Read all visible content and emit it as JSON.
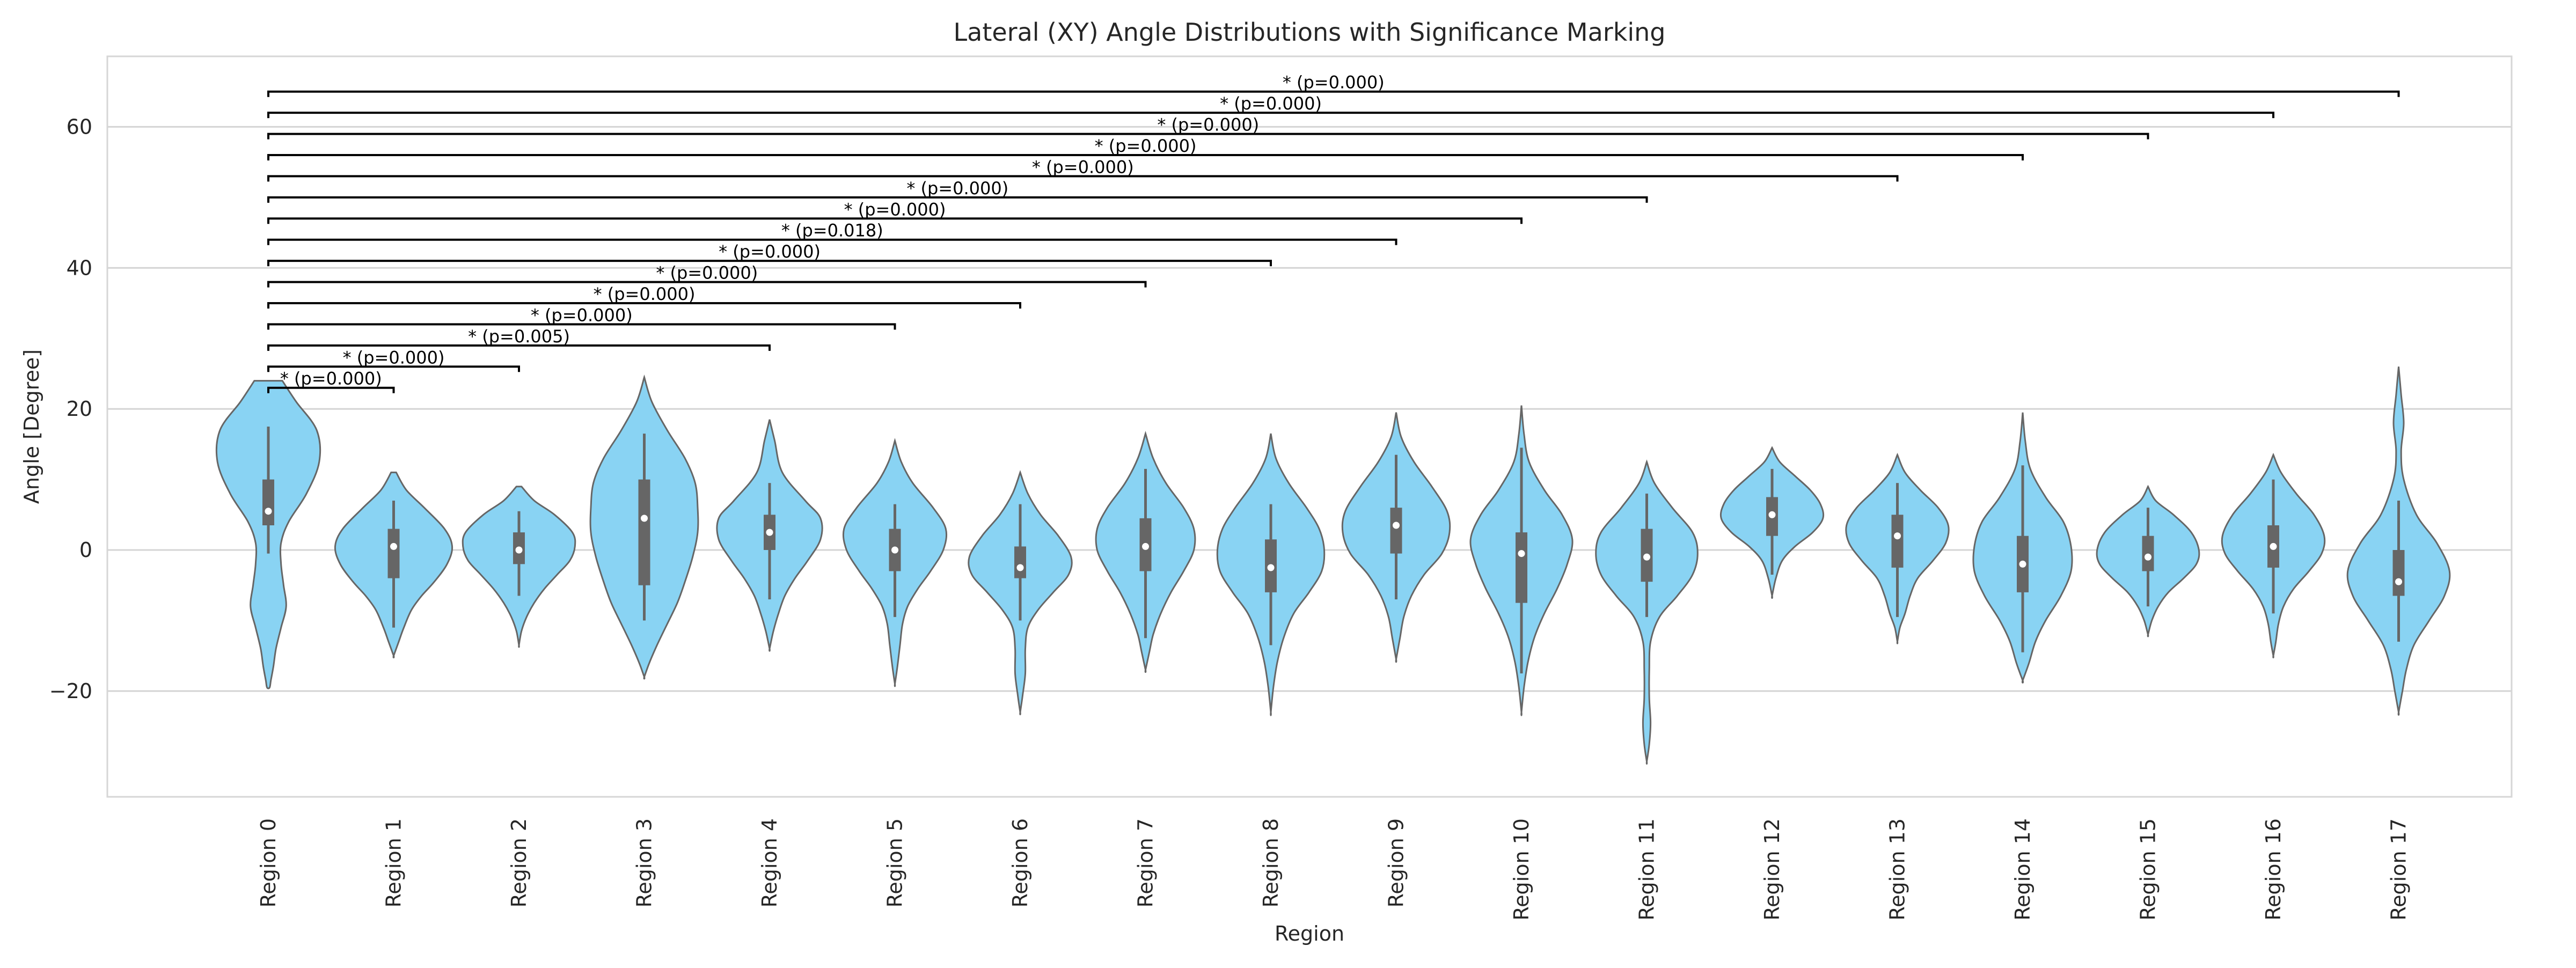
{
  "chart_data": {
    "type": "violin",
    "title": "Lateral (XY) Angle Distributions with Significance Marking",
    "xlabel": "Region",
    "ylabel": "Angle [Degree]",
    "ylim": [
      -35,
      70
    ],
    "yticks": [
      -20,
      0,
      20,
      40,
      60
    ],
    "ytick_labels": [
      "−20",
      "0",
      "20",
      "40",
      "60"
    ],
    "grid": "y",
    "violin_color": "#89d3f3",
    "edge_color": "#666666",
    "categories": [
      "Region 0",
      "Region 1",
      "Region 2",
      "Region 3",
      "Region 4",
      "Region 5",
      "Region 6",
      "Region 7",
      "Region 8",
      "Region 9",
      "Region 10",
      "Region 11",
      "Region 12",
      "Region 13",
      "Region 14",
      "Region 15",
      "Region 16",
      "Region 17"
    ],
    "violins": [
      {
        "min": -19.5,
        "max": 24.0,
        "q1": 3.5,
        "median": 5.5,
        "q3": 10.0,
        "whisker_low": -0.5,
        "whisker_high": 17.5,
        "halfwidth": [
          0.11,
          0.22,
          0.38,
          0.4,
          0.3,
          0.16,
          0.1,
          0.1,
          0.12,
          0.14,
          0.1,
          0.06,
          0.04,
          0.02,
          0.01
        ],
        "ys": [
          24.0,
          21.0,
          17.0,
          12.5,
          8.0,
          4.0,
          1.0,
          -2.0,
          -5.0,
          -8.0,
          -11.0,
          -14.0,
          -16.5,
          -18.5,
          -19.5
        ]
      },
      {
        "min": -15.0,
        "max": 11.0,
        "q1": -4.0,
        "median": 0.5,
        "q3": 3.0,
        "whisker_low": -11.0,
        "whisker_high": 7.0,
        "halfwidth": [
          0.02,
          0.1,
          0.24,
          0.4,
          0.46,
          0.42,
          0.32,
          0.22,
          0.14,
          0.08,
          0.04,
          0.0
        ],
        "ys": [
          11.0,
          8.5,
          6.0,
          3.0,
          0.5,
          -2.0,
          -4.5,
          -6.5,
          -8.5,
          -11.0,
          -13.0,
          -15.0
        ]
      },
      {
        "min": -13.5,
        "max": 9.0,
        "q1": -2.0,
        "median": 0.0,
        "q3": 2.5,
        "whisker_low": -6.5,
        "whisker_high": 5.5,
        "halfwidth": [
          0.02,
          0.12,
          0.28,
          0.42,
          0.44,
          0.4,
          0.3,
          0.2,
          0.12,
          0.06,
          0.02,
          0.0
        ],
        "ys": [
          9.0,
          7.0,
          5.0,
          2.5,
          0.5,
          -1.5,
          -3.5,
          -5.5,
          -7.5,
          -9.5,
          -11.5,
          -13.5
        ]
      },
      {
        "min": -18.0,
        "max": 24.5,
        "q1": -5.0,
        "median": 4.5,
        "q3": 10.0,
        "whisker_low": -10.0,
        "whisker_high": 16.5,
        "halfwidth": [
          0.0,
          0.06,
          0.18,
          0.32,
          0.4,
          0.42,
          0.42,
          0.38,
          0.32,
          0.26,
          0.18,
          0.1,
          0.04,
          0.0
        ],
        "ys": [
          24.5,
          21.0,
          17.0,
          13.0,
          9.5,
          6.0,
          2.5,
          -1.0,
          -4.5,
          -7.5,
          -10.5,
          -13.5,
          -16.0,
          -18.0
        ]
      },
      {
        "min": -14.0,
        "max": 18.5,
        "q1": 0.0,
        "median": 2.5,
        "q3": 5.0,
        "whisker_low": -7.0,
        "whisker_high": 9.5,
        "halfwidth": [
          0.0,
          0.04,
          0.1,
          0.28,
          0.4,
          0.4,
          0.3,
          0.2,
          0.12,
          0.07,
          0.03,
          0.0
        ],
        "ys": [
          18.5,
          15.5,
          11.0,
          7.0,
          4.5,
          1.5,
          -1.5,
          -4.0,
          -6.5,
          -9.0,
          -11.5,
          -14.0
        ]
      },
      {
        "min": -19.0,
        "max": 15.5,
        "q1": -3.0,
        "median": 0.0,
        "q3": 3.0,
        "whisker_low": -9.5,
        "whisker_high": 6.5,
        "halfwidth": [
          0.0,
          0.05,
          0.14,
          0.3,
          0.4,
          0.38,
          0.28,
          0.18,
          0.1,
          0.06,
          0.04,
          0.02,
          0.0
        ],
        "ys": [
          15.5,
          12.5,
          9.5,
          6.0,
          3.0,
          0.0,
          -3.0,
          -5.5,
          -8.0,
          -10.5,
          -13.5,
          -16.5,
          -19.0
        ]
      },
      {
        "min": -23.0,
        "max": 11.0,
        "q1": -4.0,
        "median": -2.5,
        "q3": 0.5,
        "whisker_low": -10.0,
        "whisker_high": 6.5,
        "halfwidth": [
          0.0,
          0.06,
          0.16,
          0.3,
          0.4,
          0.38,
          0.26,
          0.14,
          0.06,
          0.04,
          0.04,
          0.02,
          0.0
        ],
        "ys": [
          11.0,
          8.0,
          5.0,
          2.0,
          -1.0,
          -3.5,
          -6.0,
          -8.5,
          -11.0,
          -14.0,
          -17.5,
          -20.5,
          -23.0
        ]
      },
      {
        "min": -17.0,
        "max": 16.5,
        "q1": -3.0,
        "median": 0.5,
        "q3": 4.5,
        "whisker_low": -12.5,
        "whisker_high": 11.5,
        "halfwidth": [
          0.0,
          0.06,
          0.16,
          0.3,
          0.38,
          0.38,
          0.3,
          0.2,
          0.12,
          0.06,
          0.03,
          0.0
        ],
        "ys": [
          16.5,
          13.0,
          9.5,
          6.0,
          3.0,
          0.0,
          -3.0,
          -6.0,
          -9.0,
          -12.0,
          -14.5,
          -17.0
        ]
      },
      {
        "min": -23.0,
        "max": 16.5,
        "q1": -6.0,
        "median": -2.5,
        "q3": 1.5,
        "whisker_low": -13.5,
        "whisker_high": 6.5,
        "halfwidth": [
          0.0,
          0.04,
          0.14,
          0.28,
          0.38,
          0.42,
          0.4,
          0.3,
          0.18,
          0.1,
          0.05,
          0.02,
          0.0
        ],
        "ys": [
          16.5,
          13.0,
          9.5,
          6.0,
          3.0,
          0.0,
          -3.0,
          -6.0,
          -9.0,
          -12.5,
          -16.0,
          -19.5,
          -23.0
        ]
      },
      {
        "min": -15.5,
        "max": 19.5,
        "q1": -0.5,
        "median": 3.5,
        "q3": 6.0,
        "whisker_low": -7.0,
        "whisker_high": 13.5,
        "halfwidth": [
          0.0,
          0.04,
          0.14,
          0.28,
          0.4,
          0.42,
          0.36,
          0.22,
          0.12,
          0.06,
          0.03,
          0.0
        ],
        "ys": [
          19.5,
          16.0,
          12.5,
          9.0,
          5.5,
          2.5,
          -0.5,
          -3.5,
          -6.5,
          -9.5,
          -12.5,
          -15.5
        ]
      },
      {
        "min": -23.0,
        "max": 20.5,
        "q1": -7.5,
        "median": -0.5,
        "q3": 2.5,
        "whisker_low": -17.5,
        "whisker_high": 14.5,
        "halfwidth": [
          0.0,
          0.02,
          0.06,
          0.18,
          0.32,
          0.4,
          0.36,
          0.28,
          0.18,
          0.1,
          0.05,
          0.02,
          0.0
        ],
        "ys": [
          20.5,
          16.5,
          12.5,
          8.5,
          5.0,
          1.5,
          -2.0,
          -5.5,
          -9.0,
          -12.5,
          -16.0,
          -19.5,
          -23.0
        ]
      },
      {
        "min": -30.0,
        "max": 12.5,
        "q1": -4.5,
        "median": -1.0,
        "q3": 3.0,
        "whisker_low": -9.5,
        "whisker_high": 8.0,
        "halfwidth": [
          0.0,
          0.06,
          0.2,
          0.36,
          0.4,
          0.36,
          0.24,
          0.1,
          0.03,
          0.02,
          0.02,
          0.03,
          0.02,
          0.0
        ],
        "ys": [
          12.5,
          9.5,
          6.0,
          2.5,
          -0.5,
          -3.5,
          -6.5,
          -9.5,
          -13.0,
          -17.0,
          -21.0,
          -24.5,
          -27.5,
          -30.0
        ]
      },
      {
        "min": -6.5,
        "max": 14.5,
        "q1": 2.0,
        "median": 5.0,
        "q3": 7.5,
        "whisker_low": -3.5,
        "whisker_high": 11.5,
        "halfwidth": [
          0.0,
          0.06,
          0.18,
          0.3,
          0.38,
          0.4,
          0.32,
          0.18,
          0.08,
          0.03,
          0.0
        ],
        "ys": [
          14.5,
          12.5,
          10.5,
          8.5,
          6.5,
          4.5,
          2.5,
          0.5,
          -1.5,
          -4.0,
          -6.5
        ]
      },
      {
        "min": -13.0,
        "max": 13.5,
        "q1": -2.5,
        "median": 2.0,
        "q3": 5.0,
        "whisker_low": -9.5,
        "whisker_high": 9.5,
        "halfwidth": [
          0.0,
          0.06,
          0.18,
          0.32,
          0.4,
          0.38,
          0.28,
          0.16,
          0.1,
          0.06,
          0.02,
          0.0
        ],
        "ys": [
          13.5,
          11.0,
          8.5,
          6.0,
          3.5,
          1.0,
          -1.5,
          -4.0,
          -6.5,
          -9.0,
          -11.0,
          -13.0
        ]
      },
      {
        "min": -18.5,
        "max": 19.5,
        "q1": -6.0,
        "median": -2.0,
        "q3": 2.0,
        "whisker_low": -14.5,
        "whisker_high": 12.0,
        "halfwidth": [
          0.0,
          0.02,
          0.06,
          0.18,
          0.32,
          0.38,
          0.38,
          0.3,
          0.18,
          0.1,
          0.05,
          0.0
        ],
        "ys": [
          19.5,
          15.5,
          11.5,
          7.5,
          4.0,
          0.5,
          -3.0,
          -6.5,
          -10.0,
          -13.0,
          -16.0,
          -18.5
        ]
      },
      {
        "min": -12.0,
        "max": 9.0,
        "q1": -3.0,
        "median": -1.0,
        "q3": 2.0,
        "whisker_low": -8.0,
        "whisker_high": 6.0,
        "halfwidth": [
          0.0,
          0.06,
          0.2,
          0.34,
          0.4,
          0.38,
          0.28,
          0.16,
          0.08,
          0.03,
          0.0
        ],
        "ys": [
          9.0,
          7.0,
          5.0,
          2.5,
          0.0,
          -2.0,
          -4.0,
          -6.0,
          -8.0,
          -10.0,
          -12.0
        ]
      },
      {
        "min": -15.0,
        "max": 13.5,
        "q1": -2.5,
        "median": 0.5,
        "q3": 3.5,
        "whisker_low": -9.0,
        "whisker_high": 10.0,
        "halfwidth": [
          0.0,
          0.06,
          0.18,
          0.32,
          0.4,
          0.38,
          0.28,
          0.16,
          0.08,
          0.04,
          0.02,
          0.0
        ],
        "ys": [
          13.5,
          11.0,
          8.0,
          5.0,
          2.0,
          -0.5,
          -3.0,
          -5.5,
          -8.0,
          -10.5,
          -13.0,
          -15.0
        ]
      },
      {
        "min": -23.0,
        "max": 26.0,
        "q1": -6.5,
        "median": -4.5,
        "q3": 0.0,
        "whisker_low": -13.0,
        "whisker_high": 7.0,
        "halfwidth": [
          0.0,
          0.02,
          0.04,
          0.02,
          0.04,
          0.14,
          0.3,
          0.4,
          0.36,
          0.24,
          0.12,
          0.06,
          0.03,
          0.0
        ],
        "ys": [
          26.0,
          22.0,
          18.0,
          14.0,
          10.0,
          5.0,
          1.0,
          -3.0,
          -6.5,
          -10.0,
          -13.5,
          -17.0,
          -20.0,
          -23.0
        ]
      }
    ],
    "brackets": [
      {
        "from": 0,
        "to": 1,
        "y": 23.0,
        "label": "* (p=0.000)"
      },
      {
        "from": 0,
        "to": 2,
        "y": 26.0,
        "label": "* (p=0.000)"
      },
      {
        "from": 0,
        "to": 4,
        "y": 29.0,
        "label": "* (p=0.005)"
      },
      {
        "from": 0,
        "to": 5,
        "y": 32.0,
        "label": "* (p=0.000)"
      },
      {
        "from": 0,
        "to": 6,
        "y": 35.0,
        "label": "* (p=0.000)"
      },
      {
        "from": 0,
        "to": 7,
        "y": 38.0,
        "label": "* (p=0.000)"
      },
      {
        "from": 0,
        "to": 8,
        "y": 41.0,
        "label": "* (p=0.000)"
      },
      {
        "from": 0,
        "to": 9,
        "y": 44.0,
        "label": "* (p=0.018)"
      },
      {
        "from": 0,
        "to": 10,
        "y": 47.0,
        "label": "* (p=0.000)"
      },
      {
        "from": 0,
        "to": 11,
        "y": 50.0,
        "label": "* (p=0.000)"
      },
      {
        "from": 0,
        "to": 13,
        "y": 53.0,
        "label": "* (p=0.000)"
      },
      {
        "from": 0,
        "to": 14,
        "y": 56.0,
        "label": "* (p=0.000)"
      },
      {
        "from": 0,
        "to": 15,
        "y": 59.0,
        "label": "* (p=0.000)"
      },
      {
        "from": 0,
        "to": 16,
        "y": 62.0,
        "label": "* (p=0.000)"
      },
      {
        "from": 0,
        "to": 17,
        "y": 65.0,
        "label": "* (p=0.000)"
      }
    ]
  }
}
